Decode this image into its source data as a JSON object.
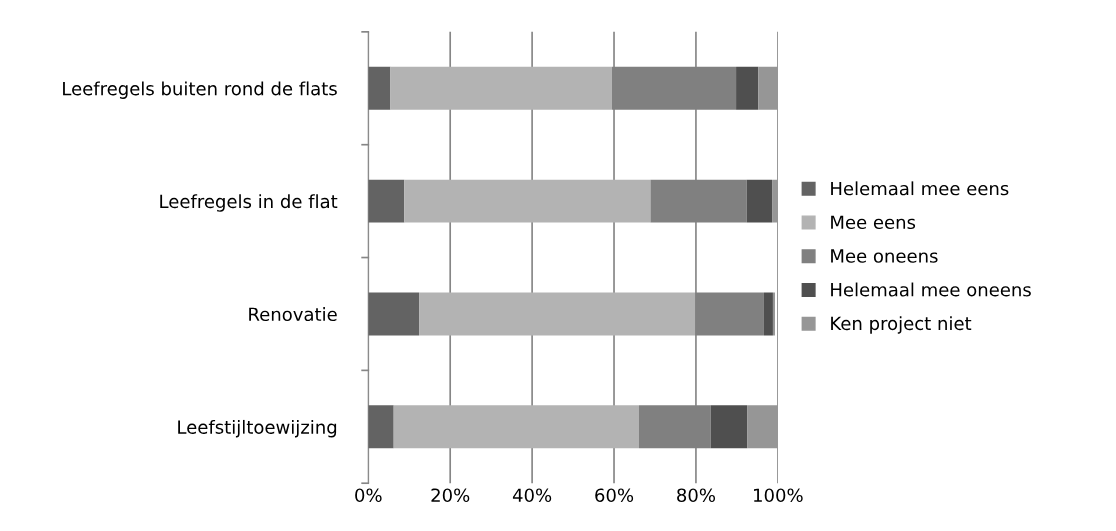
{
  "chart_data": {
    "type": "bar",
    "orientation": "horizontal",
    "stacked": true,
    "categories": [
      "Leefregels buiten rond de flats",
      "Leefregels in de flat",
      "Renovatie",
      "Leefstijltoewijzing"
    ],
    "series": [
      {
        "name": "Helemaal mee eens",
        "color": "#636363",
        "values": [
          5.4,
          8.8,
          12.4,
          6.2
        ]
      },
      {
        "name": "Mee eens",
        "color": "#b3b3b3",
        "values": [
          54.1,
          60.1,
          67.4,
          59.9
        ]
      },
      {
        "name": "Mee oneens",
        "color": "#808080",
        "values": [
          30.3,
          23.5,
          16.8,
          17.5
        ]
      },
      {
        "name": "Helemaal mee oneens",
        "color": "#4f4f4f",
        "values": [
          5.4,
          6.2,
          2.2,
          8.9
        ]
      },
      {
        "name": "Ken project niet",
        "color": "#969696",
        "values": [
          4.8,
          1.4,
          0.5,
          7.5
        ]
      }
    ],
    "xlim": [
      0,
      100
    ],
    "xticks": [
      {
        "value": 0,
        "label": "0%"
      },
      {
        "value": 20,
        "label": "20%"
      },
      {
        "value": 40,
        "label": "40%"
      },
      {
        "value": 60,
        "label": "60%"
      },
      {
        "value": 80,
        "label": "80%"
      },
      {
        "value": 100,
        "label": "100%"
      }
    ],
    "grid": "x",
    "legend": "right"
  }
}
